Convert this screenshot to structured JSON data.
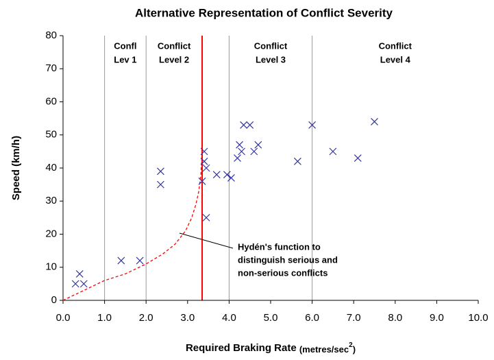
{
  "chart_data": {
    "type": "scatter",
    "title": "Alternative Representation of Conflict Severity",
    "ylabel": "Speed (km/h)",
    "xlabel": {
      "main": "Required Braking Rate",
      "unit": "(metres/sec",
      "power": "2",
      "close": ")"
    },
    "x": [
      0.3,
      0.4,
      0.5,
      1.4,
      1.85,
      2.35,
      2.35,
      3.35,
      3.4,
      3.4,
      3.45,
      3.45,
      3.7,
      3.95,
      4.05,
      4.2,
      4.25,
      4.3,
      4.35,
      4.5,
      4.6,
      4.7,
      5.65,
      6.0,
      6.5,
      7.1,
      7.5
    ],
    "values": [
      5,
      8,
      5,
      12,
      12,
      39,
      35,
      36,
      45,
      42,
      40,
      25,
      38,
      38,
      37,
      43,
      47,
      45,
      53,
      53,
      45,
      47,
      42,
      53,
      45,
      43,
      54
    ],
    "marker_color": "#3333a0",
    "curve": {
      "x": [
        0,
        0.5,
        1.0,
        1.5,
        2.0,
        2.4,
        2.7,
        2.95,
        3.1,
        3.2,
        3.27,
        3.32,
        3.35
      ],
      "values": [
        0,
        3,
        6,
        8,
        11,
        14,
        17,
        21,
        25,
        29,
        33,
        38,
        45
      ],
      "color": "#ff0000"
    },
    "threshold": 3.35,
    "threshold_color": "#ff0000",
    "zones": [
      {
        "from": 1,
        "to": 2,
        "label": [
          "Confl",
          "Lev 1"
        ]
      },
      {
        "from": 2,
        "to": 3.35,
        "label": [
          "Conflict",
          "Level 2"
        ]
      },
      {
        "from": 4,
        "to": 6,
        "label": [
          "Conflict",
          "Level 3"
        ]
      },
      {
        "from": 6,
        "to": 10,
        "label": [
          "Conflict",
          "Level 4"
        ]
      }
    ],
    "annotation": [
      "Hydén's function to",
      "distinguish serious and",
      "non-serious conflicts"
    ],
    "xlim": [
      0,
      10
    ],
    "ylim": [
      0,
      80
    ],
    "xticks": [
      {
        "value": 0,
        "label": "0.0"
      },
      {
        "value": 1,
        "label": "1.0"
      },
      {
        "value": 2,
        "label": "2.0"
      },
      {
        "value": 3,
        "label": "3.0"
      },
      {
        "value": 4,
        "label": "4.0"
      },
      {
        "value": 5,
        "label": "5.0"
      },
      {
        "value": 6,
        "label": "6.0"
      },
      {
        "value": 7,
        "label": "7.0"
      },
      {
        "value": 8,
        "label": "8.0"
      },
      {
        "value": 9,
        "label": "9.0"
      },
      {
        "value": 10,
        "label": "10.0"
      }
    ],
    "yticks": [
      0,
      10,
      20,
      30,
      40,
      50,
      60,
      70,
      80
    ]
  }
}
